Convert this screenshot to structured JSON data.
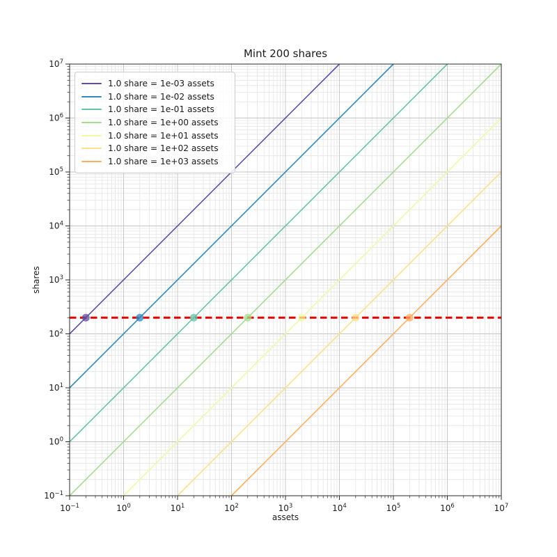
{
  "title": "Mint 200 shares",
  "axes": {
    "xlabel": "assets",
    "ylabel": "shares"
  },
  "chart_data": {
    "type": "line",
    "title": "Mint 200 shares",
    "xlabel": "assets",
    "ylabel": "shares",
    "xscale": "log",
    "yscale": "log",
    "xlim": [
      0.1,
      10000000
    ],
    "ylim": [
      0.1,
      10000000
    ],
    "x_tick_exponents": [
      -1,
      0,
      1,
      2,
      3,
      4,
      5,
      6,
      7
    ],
    "y_tick_exponents": [
      -1,
      0,
      1,
      2,
      3,
      4,
      5,
      6,
      7
    ],
    "grid": true,
    "grid_major_color": "#c3c3c3",
    "grid_minor_color": "#e4e4e4",
    "legend_position": "upper left",
    "series": [
      {
        "label": "1.0 share = 1e-03 assets",
        "assets_per_share": 0.001,
        "color": "#5e4fa2",
        "marker_at": {
          "assets": 0.2,
          "shares": 200
        }
      },
      {
        "label": "1.0 share = 1e-02 assets",
        "assets_per_share": 0.01,
        "color": "#3288bd",
        "marker_at": {
          "assets": 2,
          "shares": 200
        }
      },
      {
        "label": "1.0 share = 1e-01 assets",
        "assets_per_share": 0.1,
        "color": "#66c2a5",
        "marker_at": {
          "assets": 20,
          "shares": 200
        }
      },
      {
        "label": "1.0 share = 1e+00 assets",
        "assets_per_share": 1,
        "color": "#a6dc8e",
        "marker_at": {
          "assets": 200,
          "shares": 200
        }
      },
      {
        "label": "1.0 share = 1e+01 assets",
        "assets_per_share": 10,
        "color": "#f1f9a4",
        "marker_at": {
          "assets": 2000,
          "shares": 200
        }
      },
      {
        "label": "1.0 share = 1e+02 assets",
        "assets_per_share": 100,
        "color": "#fee08b",
        "marker_at": {
          "assets": 20000,
          "shares": 200
        }
      },
      {
        "label": "1.0 share = 1e+03 assets",
        "assets_per_share": 1000,
        "color": "#fdae61",
        "marker_at": {
          "assets": 200000,
          "shares": 200
        }
      }
    ],
    "reference_line": {
      "shares": 200,
      "color": "#e60000",
      "style": "dashed",
      "width": 3
    }
  }
}
